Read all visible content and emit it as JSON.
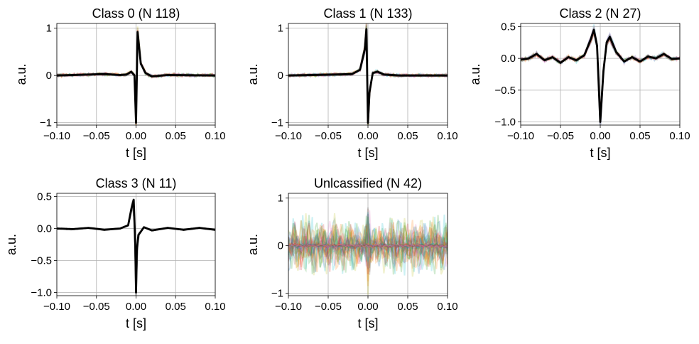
{
  "chart_data": [
    {
      "type": "line",
      "title": "Class 0 (N 118)",
      "xlabel": "t [s]",
      "ylabel": "a.u.",
      "xlim": [
        -0.1,
        0.1
      ],
      "ylim": [
        -1.05,
        1.1
      ],
      "xticks": [
        -0.1,
        -0.05,
        0.0,
        0.05,
        0.1
      ],
      "xtick_labels": [
        "−0.10",
        "−0.05",
        "0.00",
        "0.05",
        "0.10"
      ],
      "yticks": [
        -1,
        0,
        1
      ],
      "ytick_labels": [
        "−1",
        "0",
        "1"
      ],
      "grid": true,
      "overlay": "colored-transparent",
      "mean_trace": {
        "x": [
          -0.1,
          -0.04,
          -0.02,
          -0.012,
          -0.006,
          -0.002,
          0.0,
          0.002,
          0.006,
          0.012,
          0.02,
          0.04,
          0.1
        ],
        "y": [
          0.0,
          0.03,
          0.01,
          0.02,
          0.08,
          0.0,
          -1.0,
          0.92,
          0.25,
          0.05,
          -0.02,
          0.01,
          0.0
        ]
      }
    },
    {
      "type": "line",
      "title": "Class 1 (N 133)",
      "xlabel": "t [s]",
      "ylabel": "a.u.",
      "xlim": [
        -0.1,
        0.1
      ],
      "ylim": [
        -1.05,
        1.1
      ],
      "xticks": [
        -0.1,
        -0.05,
        0.0,
        0.05,
        0.1
      ],
      "xtick_labels": [
        "−0.10",
        "−0.05",
        "0.00",
        "0.05",
        "0.10"
      ],
      "yticks": [
        -1,
        0,
        1
      ],
      "ytick_labels": [
        "−1",
        "0",
        "1"
      ],
      "grid": true,
      "overlay": "colored-transparent",
      "mean_trace": {
        "x": [
          -0.1,
          -0.04,
          -0.02,
          -0.01,
          -0.004,
          -0.002,
          0.0,
          0.002,
          0.006,
          0.012,
          0.02,
          0.04,
          0.1
        ],
        "y": [
          0.0,
          0.02,
          0.03,
          0.12,
          0.55,
          0.98,
          -1.0,
          -0.35,
          0.05,
          0.08,
          0.02,
          0.0,
          0.0
        ]
      }
    },
    {
      "type": "line",
      "title": "Class 2 (N 27)",
      "xlabel": "t [s]",
      "ylabel": "a.u.",
      "xlim": [
        -0.1,
        0.1
      ],
      "ylim": [
        -1.05,
        0.55
      ],
      "xticks": [
        -0.1,
        -0.05,
        0.0,
        0.05,
        0.1
      ],
      "xtick_labels": [
        "−0.10",
        "−0.05",
        "0.00",
        "0.05",
        "0.10"
      ],
      "yticks": [
        -1.0,
        -0.5,
        0.0,
        0.5
      ],
      "ytick_labels": [
        "−1.0",
        "−0.5",
        "0.0",
        "0.5"
      ],
      "grid": true,
      "overlay": "colored-transparent",
      "mean_trace": {
        "x": [
          -0.1,
          -0.09,
          -0.08,
          -0.07,
          -0.06,
          -0.05,
          -0.04,
          -0.03,
          -0.02,
          -0.012,
          -0.008,
          -0.004,
          0.0,
          0.004,
          0.008,
          0.012,
          0.02,
          0.03,
          0.04,
          0.05,
          0.06,
          0.07,
          0.08,
          0.09,
          0.1
        ],
        "y": [
          -0.02,
          0.0,
          0.07,
          -0.03,
          0.02,
          -0.07,
          0.02,
          -0.03,
          0.05,
          0.3,
          0.45,
          0.2,
          -1.0,
          -0.2,
          0.25,
          0.34,
          0.1,
          -0.05,
          0.02,
          -0.05,
          0.03,
          0.0,
          0.07,
          -0.01,
          0.0
        ]
      }
    },
    {
      "type": "line",
      "title": "Class 3 (N 11)",
      "xlabel": "t [s]",
      "ylabel": "a.u.",
      "xlim": [
        -0.1,
        0.1
      ],
      "ylim": [
        -1.05,
        0.55
      ],
      "xticks": [
        -0.1,
        -0.05,
        0.0,
        0.05,
        0.1
      ],
      "xtick_labels": [
        "−0.10",
        "−0.05",
        "0.00",
        "0.05",
        "0.10"
      ],
      "yticks": [
        -1.0,
        -0.5,
        0.0,
        0.5
      ],
      "ytick_labels": [
        "−1.0",
        "−0.5",
        "0.0",
        "0.5"
      ],
      "grid": true,
      "overlay": "gray",
      "mean_trace": {
        "x": [
          -0.1,
          -0.08,
          -0.06,
          -0.04,
          -0.02,
          -0.01,
          -0.006,
          -0.003,
          -0.001,
          0.0,
          0.001,
          0.003,
          0.006,
          0.01,
          0.02,
          0.04,
          0.06,
          0.08,
          0.1
        ],
        "y": [
          0.0,
          -0.01,
          0.01,
          -0.02,
          0.0,
          0.05,
          0.3,
          0.45,
          -0.25,
          -1.0,
          -0.35,
          -0.1,
          -0.05,
          0.02,
          -0.03,
          0.01,
          -0.02,
          0.01,
          -0.02
        ]
      }
    },
    {
      "type": "line",
      "title": "Unlcassified (N 42)",
      "xlabel": "t [s]",
      "ylabel": "a.u.",
      "xlim": [
        -0.1,
        0.1
      ],
      "ylim": [
        -1.05,
        1.1
      ],
      "xticks": [
        -0.1,
        -0.05,
        0.0,
        0.05,
        0.1
      ],
      "xtick_labels": [
        "−0.10",
        "−0.05",
        "0.00",
        "0.05",
        "0.10"
      ],
      "yticks": [
        -1,
        0,
        1
      ],
      "ytick_labels": [
        "−1",
        "0",
        "1"
      ],
      "grid": true,
      "overlay": "colored-transparent-noisy",
      "mean_trace": null
    }
  ]
}
